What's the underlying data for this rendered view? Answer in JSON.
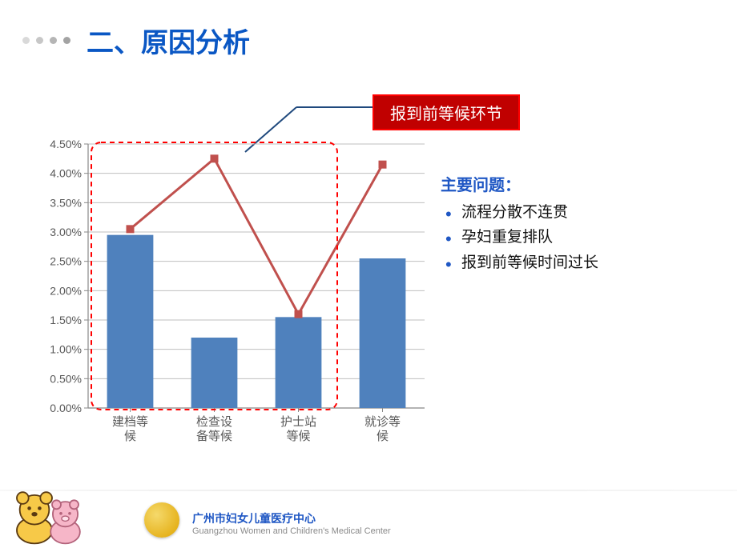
{
  "title": {
    "text": "二、原因分析",
    "color": "#0a57c4"
  },
  "dots": {
    "colors": [
      "#d9d9d9",
      "#c7c7c7",
      "#b5b5b5",
      "#a3a3a3"
    ]
  },
  "callout": {
    "label": "报到前等候环节",
    "border_color": "#ff0000",
    "bg_color": "#c00000",
    "text_color": "#ffffff",
    "line_color": "#1f497d"
  },
  "problems": {
    "title": "主要问题：",
    "title_color": "#1f57c4",
    "bullet_color": "#1f57c4",
    "text_color": "#111111",
    "items": [
      "流程分散不连贯",
      "孕妇重复排队",
      "报到前等候时间过长"
    ]
  },
  "chart": {
    "type": "bar+line",
    "categories": [
      "建档等\n候",
      "检查设\n备等候",
      "护士站\n等候",
      "就诊等\n候"
    ],
    "bar_values": [
      2.95,
      1.2,
      1.55,
      2.55
    ],
    "bar_color": "#4f81bd",
    "line_values": [
      3.05,
      4.25,
      1.6,
      4.15
    ],
    "line_color": "#c0504d",
    "marker_color": "#c0504d",
    "marker_size": 10,
    "line_width": 3,
    "ylim": [
      0,
      4.5
    ],
    "ytick_step": 0.5,
    "yticks": [
      "0.00%",
      "0.50%",
      "1.00%",
      "1.50%",
      "2.00%",
      "2.50%",
      "3.00%",
      "3.50%",
      "4.00%",
      "4.50%"
    ],
    "gridline_color": "#bfbfbf",
    "axis_color": "#888888",
    "tick_font_size": 14,
    "tick_color": "#595959",
    "bar_width_ratio": 0.55,
    "plot_bg": "#ffffff",
    "highlight_box": {
      "color": "#ff0000",
      "dash": "6,5",
      "width": 2,
      "around_categories": [
        0,
        1,
        2
      ]
    }
  },
  "footer": {
    "org_cn": "广州市妇女儿童医疗中心",
    "org_en": "Guangzhou Women and Children's Medical Center",
    "org_cn_color": "#1f57c4",
    "org_en_color": "#8a8a8a",
    "medal_outer": "#e0a400",
    "medal_inner": "#f5d96b",
    "bear_body": "#f7c948",
    "bear_outline": "#5a3a12",
    "pig_body": "#f6b6c8",
    "pig_outline": "#b3637b"
  }
}
